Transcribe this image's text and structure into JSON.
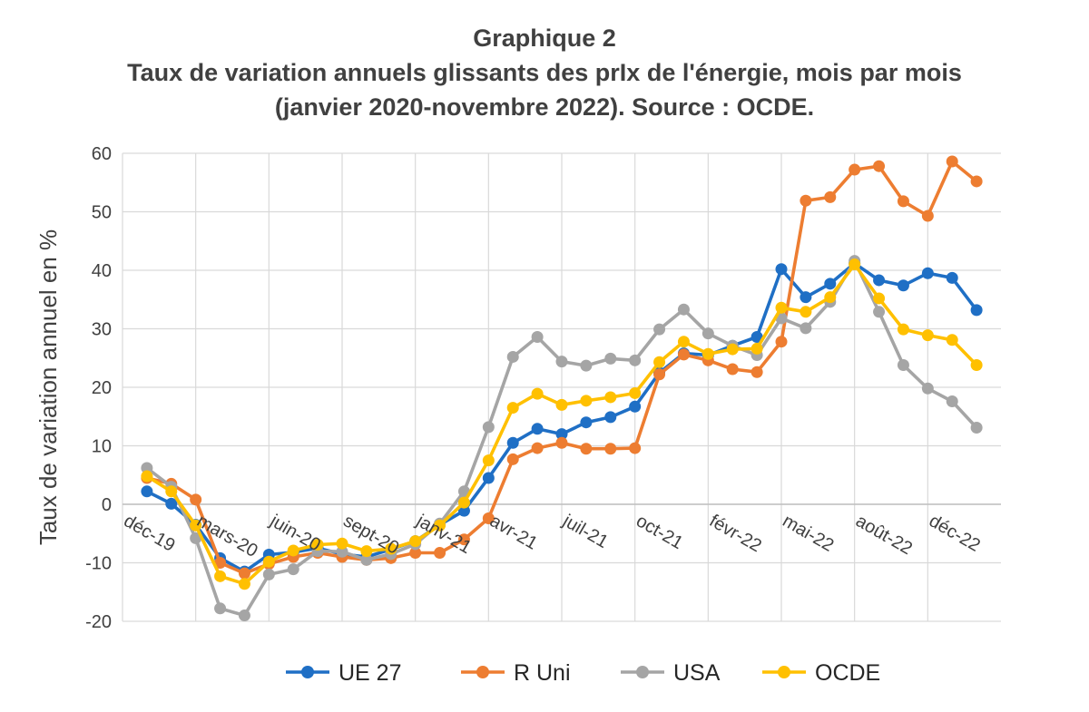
{
  "chart_data": {
    "type": "line",
    "title_lines": [
      "Graphique 2",
      "Taux de variation annuels glissants des prIx de l'énergie, mois par mois",
      "(janvier 2020-novembre 2022). Source : OCDE."
    ],
    "xlabel": "",
    "ylabel": "Taux de variation annuel en %",
    "ylim": [
      -20,
      60
    ],
    "yticks": [
      -20,
      -10,
      0,
      10,
      20,
      30,
      40,
      50,
      60
    ],
    "xlim": [
      0,
      36
    ],
    "x_tick_labels": [
      "déc-19",
      "mars-20",
      "juin-20",
      "sept-20",
      "janv-21",
      "avr-21",
      "juil-21",
      "oct-21",
      "févr-22",
      "mai-22",
      "août-22",
      "déc-22"
    ],
    "x_tick_positions": [
      0,
      3,
      6,
      9,
      12,
      15,
      18,
      21,
      24,
      27,
      30,
      33
    ],
    "x_tick_rotation": 30,
    "grid": true,
    "legend_position": "bottom",
    "x": [
      1,
      2,
      3,
      4,
      5,
      6,
      7,
      8,
      9,
      10,
      11,
      12,
      13,
      14,
      15,
      16,
      17,
      18,
      19,
      20,
      21,
      22,
      23,
      24,
      25,
      26,
      27,
      28,
      29,
      30,
      31,
      32,
      33,
      34,
      35
    ],
    "series": [
      {
        "name": "UE 27",
        "color": "#1F6FC5",
        "values": [
          2.2,
          0.1,
          -3.5,
          -9.2,
          -11.5,
          -8.6,
          -8.2,
          -7.5,
          -8.5,
          -9.0,
          -7.7,
          -6.3,
          -3.5,
          -1.1,
          4.5,
          10.5,
          12.9,
          12.0,
          14.0,
          14.9,
          16.7,
          22.5,
          25.8,
          25.5,
          27.1,
          28.6,
          40.2,
          35.4,
          37.7,
          41.2,
          38.3,
          37.4,
          39.5,
          38.7,
          33.2
        ]
      },
      {
        "name": "R Uni",
        "color": "#ED7D31",
        "values": [
          4.5,
          3.5,
          0.8,
          -10.0,
          -11.8,
          -10.2,
          -9.0,
          -8.3,
          -9.0,
          -9.5,
          -9.2,
          -8.3,
          -8.3,
          -6.0,
          -2.4,
          7.7,
          9.6,
          10.5,
          9.5,
          9.5,
          9.6,
          22.2,
          25.6,
          24.6,
          23.1,
          22.6,
          27.8,
          51.9,
          52.5,
          57.2,
          57.8,
          51.8,
          49.3,
          58.6,
          55.2
        ]
      },
      {
        "name": "USA",
        "color": "#A5A5A5",
        "values": [
          6.2,
          3.0,
          -5.8,
          -17.8,
          -19.0,
          -12.0,
          -11.1,
          -8.0,
          -8.1,
          -9.5,
          -8.5,
          -6.8,
          -3.3,
          2.2,
          13.2,
          25.2,
          28.6,
          24.4,
          23.7,
          24.9,
          24.6,
          29.9,
          33.3,
          29.2,
          27.1,
          25.5,
          31.8,
          30.1,
          34.6,
          41.6,
          32.9,
          23.8,
          19.8,
          17.6,
          13.1
        ]
      },
      {
        "name": "OCDE",
        "color": "#FFC000",
        "values": [
          4.8,
          2.2,
          -3.6,
          -12.3,
          -13.6,
          -9.8,
          -7.9,
          -6.9,
          -6.7,
          -8.0,
          -7.6,
          -6.3,
          -3.6,
          0.3,
          7.5,
          16.5,
          18.9,
          17.0,
          17.7,
          18.3,
          19.0,
          24.3,
          27.8,
          25.7,
          26.5,
          26.6,
          33.6,
          32.9,
          35.4,
          41.0,
          35.2,
          29.9,
          28.9,
          28.1,
          23.8
        ]
      }
    ]
  }
}
